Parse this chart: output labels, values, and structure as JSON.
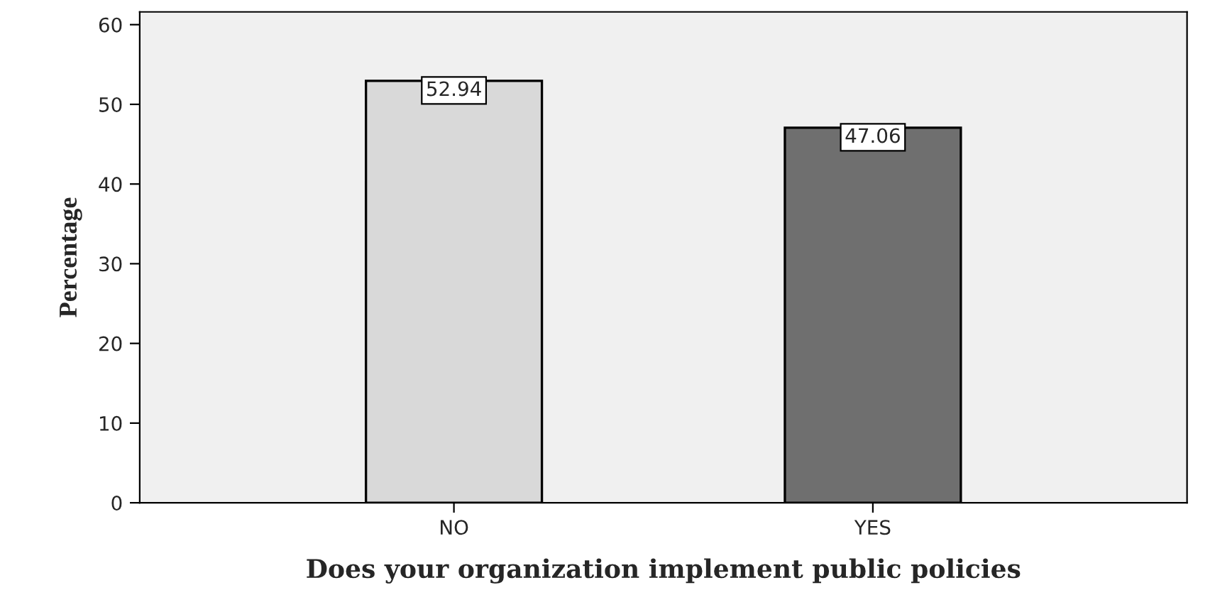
{
  "chart_data": {
    "type": "bar",
    "xlabel": "Does your organization implement public policies",
    "ylabel": "Percentage",
    "categories": [
      "NO",
      "YES"
    ],
    "values": [
      52.94,
      47.06
    ],
    "colors": [
      "#d9d9d9",
      "#6f6f6f"
    ],
    "ylim": [
      0,
      61.6
    ],
    "yticks": [
      0,
      10,
      20,
      30,
      40,
      50,
      60
    ],
    "grid": false,
    "data_labels": true
  }
}
